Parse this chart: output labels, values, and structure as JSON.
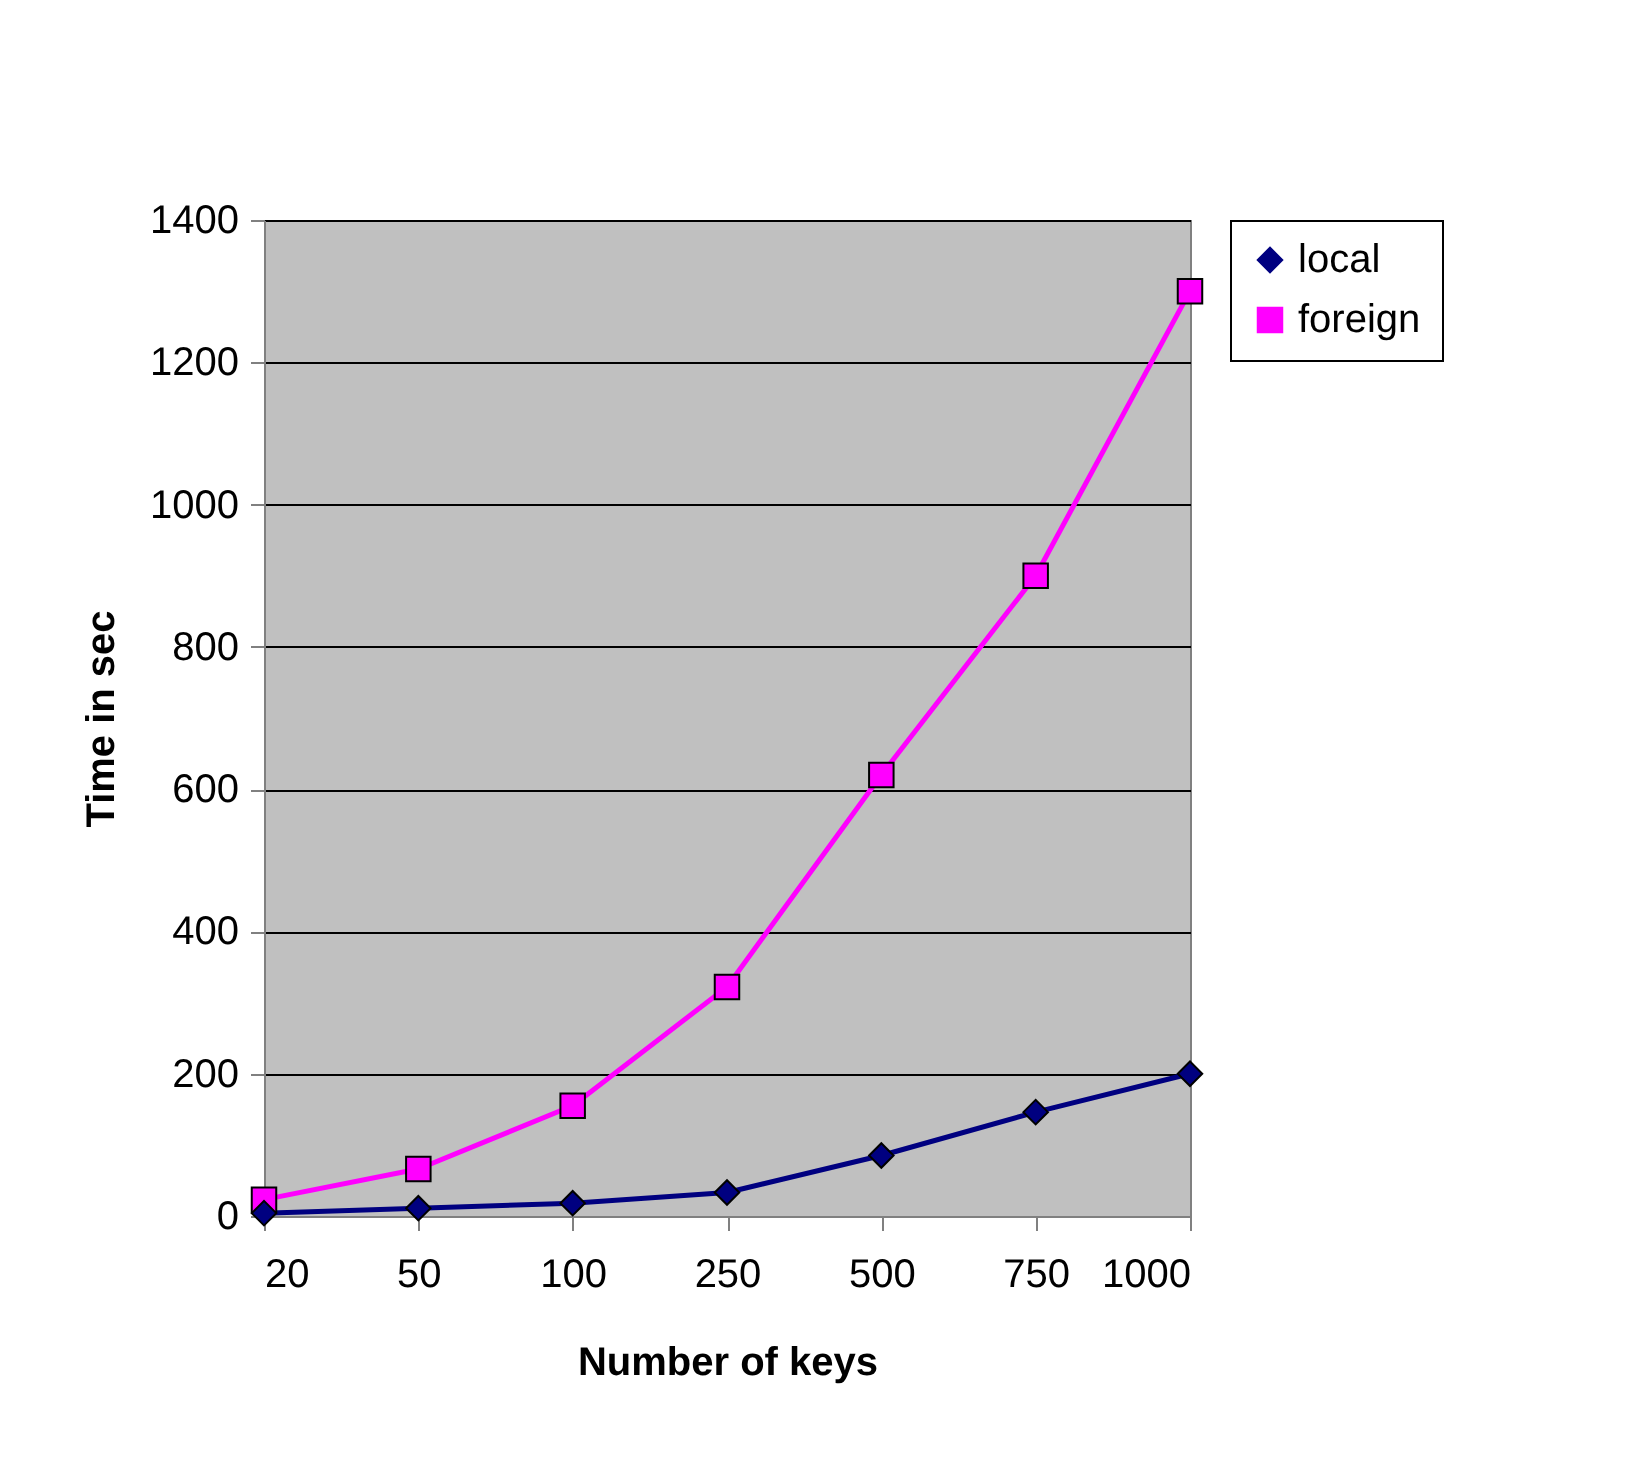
{
  "chart_data": {
    "type": "line",
    "xlabel": "Number of keys",
    "ylabel": "Time in sec",
    "categories": [
      "20",
      "50",
      "100",
      "250",
      "500",
      "750",
      "1000"
    ],
    "series": [
      {
        "name": "local",
        "color": "#000080",
        "marker": "diamond",
        "values": [
          4,
          11,
          18,
          33,
          85,
          146,
          200
        ]
      },
      {
        "name": "foreign",
        "color": "#ff00ff",
        "marker": "square",
        "values": [
          23,
          66,
          155,
          322,
          620,
          900,
          1300
        ]
      }
    ],
    "ylim": [
      0,
      1400
    ],
    "yticks": [
      0,
      200,
      400,
      600,
      800,
      1000,
      1200,
      1400
    ],
    "grid": "y",
    "legend": "right"
  }
}
